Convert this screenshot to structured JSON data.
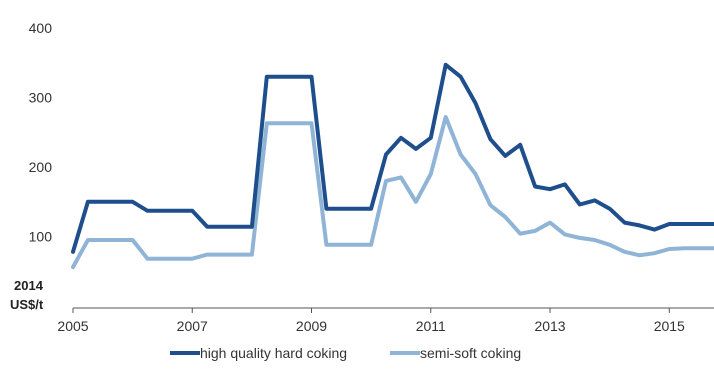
{
  "chart_data": {
    "type": "line",
    "title": "",
    "xlabel": "",
    "ylabel": "",
    "unit_label": [
      "2014",
      "US$/t"
    ],
    "xlim": [
      2005,
      2015.75
    ],
    "ylim": [
      0,
      400
    ],
    "x_ticks": [
      2005,
      2007,
      2009,
      2011,
      2013,
      2015
    ],
    "x_tick_labels": [
      "2005",
      "2007",
      "2009",
      "2011",
      "2013",
      "2015"
    ],
    "y_ticks": [
      100,
      200,
      300,
      400
    ],
    "y_tick_labels": [
      "100",
      "200",
      "300",
      "400"
    ],
    "grid": false,
    "legend_position": "bottom",
    "series": [
      {
        "name": "high quality hard coking",
        "color": "#1f4e8c",
        "points": [
          [
            2005.0,
            78
          ],
          [
            2005.25,
            150
          ],
          [
            2005.5,
            150
          ],
          [
            2005.75,
            150
          ],
          [
            2006.0,
            150
          ],
          [
            2006.25,
            137
          ],
          [
            2006.5,
            137
          ],
          [
            2006.75,
            137
          ],
          [
            2007.0,
            137
          ],
          [
            2007.25,
            114
          ],
          [
            2007.5,
            114
          ],
          [
            2007.75,
            114
          ],
          [
            2008.0,
            114
          ],
          [
            2008.25,
            330
          ],
          [
            2008.5,
            330
          ],
          [
            2008.75,
            330
          ],
          [
            2009.0,
            330
          ],
          [
            2009.25,
            140
          ],
          [
            2009.5,
            140
          ],
          [
            2009.75,
            140
          ],
          [
            2010.0,
            140
          ],
          [
            2010.25,
            218
          ],
          [
            2010.5,
            242
          ],
          [
            2010.75,
            226
          ],
          [
            2011.0,
            242
          ],
          [
            2011.25,
            347
          ],
          [
            2011.5,
            330
          ],
          [
            2011.75,
            292
          ],
          [
            2012.0,
            240
          ],
          [
            2012.25,
            216
          ],
          [
            2012.5,
            232
          ],
          [
            2012.75,
            172
          ],
          [
            2013.0,
            168
          ],
          [
            2013.25,
            175
          ],
          [
            2013.5,
            146
          ],
          [
            2013.75,
            152
          ],
          [
            2014.0,
            140
          ],
          [
            2014.25,
            120
          ],
          [
            2014.5,
            116
          ],
          [
            2014.75,
            110
          ],
          [
            2015.0,
            118
          ],
          [
            2015.25,
            118
          ],
          [
            2015.5,
            118
          ],
          [
            2015.75,
            118
          ]
        ]
      },
      {
        "name": "semi-soft coking",
        "color": "#8fb4d6",
        "points": [
          [
            2005.0,
            56
          ],
          [
            2005.25,
            95
          ],
          [
            2005.5,
            95
          ],
          [
            2005.75,
            95
          ],
          [
            2006.0,
            95
          ],
          [
            2006.25,
            68
          ],
          [
            2006.5,
            68
          ],
          [
            2006.75,
            68
          ],
          [
            2007.0,
            68
          ],
          [
            2007.25,
            74
          ],
          [
            2007.5,
            74
          ],
          [
            2007.75,
            74
          ],
          [
            2008.0,
            74
          ],
          [
            2008.25,
            263
          ],
          [
            2008.5,
            263
          ],
          [
            2008.75,
            263
          ],
          [
            2009.0,
            263
          ],
          [
            2009.25,
            88
          ],
          [
            2009.5,
            88
          ],
          [
            2009.75,
            88
          ],
          [
            2010.0,
            88
          ],
          [
            2010.25,
            180
          ],
          [
            2010.5,
            185
          ],
          [
            2010.75,
            150
          ],
          [
            2011.0,
            190
          ],
          [
            2011.25,
            272
          ],
          [
            2011.5,
            218
          ],
          [
            2011.75,
            190
          ],
          [
            2012.0,
            145
          ],
          [
            2012.25,
            128
          ],
          [
            2012.5,
            104
          ],
          [
            2012.75,
            108
          ],
          [
            2013.0,
            120
          ],
          [
            2013.25,
            103
          ],
          [
            2013.5,
            98
          ],
          [
            2013.75,
            95
          ],
          [
            2014.0,
            88
          ],
          [
            2014.25,
            78
          ],
          [
            2014.5,
            73
          ],
          [
            2014.75,
            76
          ],
          [
            2015.0,
            82
          ],
          [
            2015.25,
            83
          ],
          [
            2015.5,
            83
          ],
          [
            2015.75,
            83
          ]
        ]
      }
    ]
  }
}
